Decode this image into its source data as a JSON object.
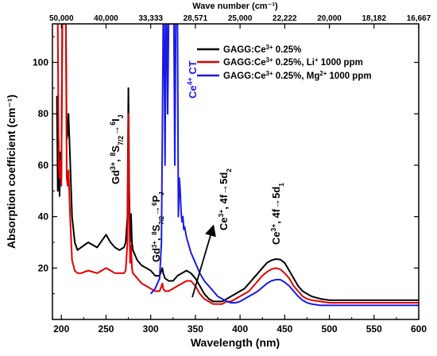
{
  "chart_data": {
    "type": "line",
    "xlabel": "Wavelength (nm)",
    "ylabel": "Absorption coefficient (cm⁻¹)",
    "top_axis_label": "Wave number (cm⁻¹)",
    "xlim": [
      190,
      600
    ],
    "ylim": [
      0,
      115
    ],
    "x_ticks": [
      "200",
      "250",
      "300",
      "350",
      "400",
      "450",
      "500",
      "550",
      "600"
    ],
    "x_tick_values": [
      200,
      250,
      300,
      350,
      400,
      450,
      500,
      550,
      600
    ],
    "y_ticks": [
      "20",
      "40",
      "60",
      "80",
      "100"
    ],
    "y_tick_values": [
      20,
      40,
      60,
      80,
      100
    ],
    "top_ticks": [
      "50,000",
      "40,000",
      "33,333",
      "28,571",
      "25,000",
      "22,222",
      "20,000",
      "18,182",
      "16,667"
    ],
    "top_tick_positions_nm": [
      200,
      250,
      300,
      350,
      400,
      450,
      500,
      550,
      600
    ],
    "legend_position": "top-right",
    "series": [
      {
        "name": "GAGG:Ce³⁺ 0.25%",
        "legend_parts": [
          [
            "GAGG:Ce",
            ""
          ],
          [
            "3+",
            "sup"
          ],
          [
            " 0.25%",
            ""
          ]
        ],
        "color": "#000000",
        "x": [
          195,
          196,
          197,
          198,
          199,
          200,
          201,
          202,
          203,
          204,
          205,
          206,
          207,
          208,
          210,
          212,
          215,
          218,
          222,
          230,
          240,
          250,
          255,
          260,
          265,
          270,
          272,
          274,
          275,
          276,
          277,
          278,
          279,
          280,
          285,
          290,
          295,
          300,
          305,
          310,
          312,
          313,
          314,
          316,
          320,
          325,
          330,
          335,
          340,
          345,
          350,
          355,
          360,
          365,
          370,
          375,
          380,
          385,
          390,
          395,
          400,
          405,
          410,
          415,
          420,
          425,
          430,
          435,
          440,
          445,
          450,
          455,
          460,
          465,
          470,
          475,
          480,
          490,
          500,
          520,
          540,
          560,
          580,
          600
        ],
        "y": [
          87,
          50,
          70,
          48,
          65,
          55,
          115,
          115,
          115,
          115,
          115,
          70,
          72,
          80,
          60,
          40,
          30,
          27,
          28,
          30,
          28,
          33,
          30,
          28,
          27,
          28,
          30,
          40,
          90,
          50,
          30,
          41,
          30,
          27,
          23,
          21,
          20,
          19,
          17,
          17,
          19,
          20,
          18,
          16,
          15,
          15,
          17,
          18,
          19,
          18,
          16,
          13,
          10,
          8,
          7,
          7,
          7,
          8,
          9,
          10,
          11,
          12,
          14,
          16,
          18,
          20,
          22,
          23,
          23.5,
          23.3,
          22,
          19,
          16,
          13,
          11,
          10,
          9,
          8,
          7.5,
          7.5,
          7.5,
          7.5,
          7.5,
          7.5
        ]
      },
      {
        "name": "GAGG:Ce³⁺ 0.25%, Li⁺ 1000 ppm",
        "legend_parts": [
          [
            "GAGG:Ce",
            ""
          ],
          [
            "3+",
            "sup"
          ],
          [
            " 0.25%, Li",
            ""
          ],
          [
            "+",
            "sup"
          ],
          [
            " 1000 ppm",
            ""
          ]
        ],
        "color": "#e00000",
        "x": [
          195,
          196,
          197,
          198,
          199,
          200,
          201,
          202,
          203,
          204,
          205,
          206,
          207,
          208,
          210,
          212,
          215,
          218,
          222,
          230,
          240,
          250,
          255,
          260,
          265,
          270,
          272,
          274,
          275,
          276,
          277,
          278,
          279,
          280,
          285,
          290,
          295,
          300,
          305,
          310,
          312,
          313,
          314,
          316,
          320,
          325,
          330,
          335,
          340,
          345,
          350,
          355,
          360,
          365,
          370,
          375,
          380,
          385,
          390,
          395,
          400,
          405,
          410,
          415,
          420,
          425,
          430,
          435,
          440,
          445,
          450,
          455,
          460,
          465,
          470,
          475,
          480,
          490,
          500,
          520,
          540,
          560,
          580,
          600
        ],
        "y": [
          115,
          115,
          60,
          55,
          62,
          52,
          115,
          115,
          115,
          115,
          115,
          55,
          52,
          58,
          38,
          23,
          19,
          18,
          18,
          19,
          18,
          20,
          19,
          18,
          18,
          18,
          19,
          30,
          80,
          40,
          22,
          29,
          20,
          18,
          16,
          14,
          13,
          12,
          11,
          11,
          13,
          14,
          12,
          11,
          11,
          12,
          13,
          14,
          15,
          15,
          13,
          10,
          8,
          7,
          6,
          6,
          6,
          7,
          7,
          8,
          9,
          10,
          11,
          13,
          15,
          17,
          18.5,
          19.5,
          20,
          19.5,
          18,
          16,
          13,
          11,
          9,
          8,
          7.5,
          7,
          6.5,
          6.5,
          6.5,
          6.5,
          6.5,
          6.5
        ]
      },
      {
        "name": "GAGG:Ce³⁺ 0.25%, Mg²⁺ 1000 ppm",
        "legend_parts": [
          [
            "GAGG:Ce",
            ""
          ],
          [
            "3+",
            "sup"
          ],
          [
            " 0.25%, Mg",
            ""
          ],
          [
            "2+",
            "sup"
          ],
          [
            " 1000 ppm",
            ""
          ]
        ],
        "color": "#1a1ae6",
        "x": [
          300,
          305,
          310,
          312,
          314,
          315,
          316,
          317,
          318,
          319,
          320,
          321,
          322,
          323,
          324,
          325,
          326,
          327,
          328,
          329,
          330,
          331,
          332,
          333,
          334,
          335,
          336,
          337,
          338,
          340,
          345,
          350,
          355,
          360,
          365,
          370,
          375,
          380,
          385,
          390,
          395,
          400,
          405,
          410,
          415,
          420,
          425,
          430,
          435,
          440,
          445,
          450,
          455,
          460,
          465,
          470,
          475,
          480,
          490,
          500,
          520,
          540,
          560,
          580,
          600
        ],
        "y": [
          10,
          12,
          16,
          30,
          115,
          115,
          60,
          115,
          115,
          80,
          115,
          115,
          115,
          115,
          115,
          115,
          115,
          60,
          115,
          115,
          115,
          40,
          55,
          50,
          42,
          38,
          40,
          35,
          36,
          32,
          26,
          22,
          18,
          15,
          13,
          11,
          9,
          8,
          7,
          6.5,
          6.5,
          7,
          8,
          9,
          10,
          11,
          12.5,
          14,
          15,
          15.5,
          15.5,
          14.5,
          13,
          11,
          9,
          7.5,
          6.5,
          6,
          5.5,
          5.5,
          5.5,
          5.5,
          5.5,
          5.5,
          5.5
        ]
      }
    ],
    "annotations": [
      {
        "parts": [
          [
            "Gd",
            ""
          ],
          [
            "3+",
            "sup"
          ],
          [
            ", ",
            ""
          ],
          [
            "8",
            "sup"
          ],
          [
            "S",
            ""
          ],
          [
            "7/2",
            "sub"
          ],
          [
            "→",
            ""
          ],
          [
            "6",
            "sup"
          ],
          [
            "I",
            ""
          ],
          [
            "J",
            "sub"
          ]
        ],
        "color": "#000000"
      },
      {
        "parts": [
          [
            "Gd",
            ""
          ],
          [
            "3+",
            "sup"
          ],
          [
            ", ",
            ""
          ],
          [
            "8",
            "sup"
          ],
          [
            "S",
            ""
          ],
          [
            "7/2",
            "sub"
          ],
          [
            "→",
            ""
          ],
          [
            "6",
            "sup"
          ],
          [
            "P",
            ""
          ],
          [
            "J",
            "sub"
          ]
        ],
        "color": "#000000"
      },
      {
        "parts": [
          [
            "Ce",
            ""
          ],
          [
            "3+",
            "sup"
          ],
          [
            ", 4f→5d",
            ""
          ],
          [
            "2",
            "sub"
          ]
        ],
        "color": "#000000"
      },
      {
        "parts": [
          [
            "Ce",
            ""
          ],
          [
            "3+",
            "sup"
          ],
          [
            ", 4f→5d",
            ""
          ],
          [
            "1",
            "sub"
          ]
        ],
        "color": "#000000"
      },
      {
        "parts": [
          [
            "Ce",
            ""
          ],
          [
            "4+",
            "sup"
          ],
          [
            " CT",
            ""
          ]
        ],
        "color": "#1a1ae6"
      }
    ],
    "grid": false
  }
}
